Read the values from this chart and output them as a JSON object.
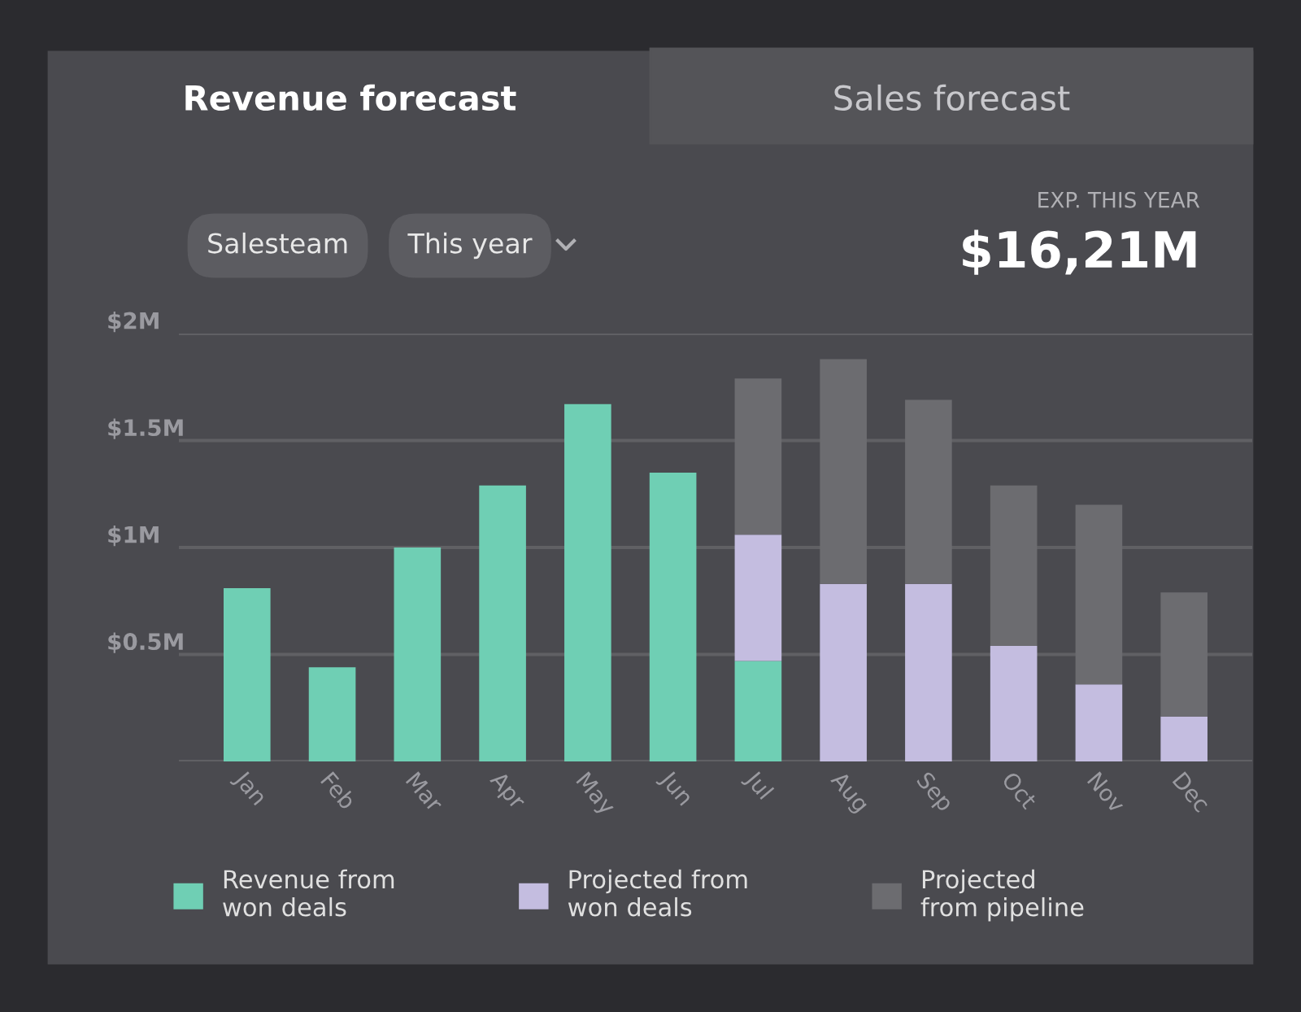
{
  "chart_data": {
    "type": "bar",
    "title": "Revenue forecast",
    "stacked": true,
    "categories": [
      "Jan",
      "Feb",
      "Mar",
      "Apr",
      "May",
      "Jun",
      "Jul",
      "Aug",
      "Sep",
      "Oct",
      "Nov",
      "Dec"
    ],
    "series": [
      {
        "name": "Revenue from\nwon deals",
        "color": "#6fcfb4",
        "values": [
          0.81,
          0.44,
          1.0,
          1.29,
          1.67,
          1.35,
          0.47,
          null,
          null,
          null,
          null,
          null
        ]
      },
      {
        "name": "Projected from\nwon deals",
        "color": "#c4bde0",
        "values": [
          null,
          null,
          null,
          null,
          null,
          null,
          0.59,
          0.83,
          0.83,
          0.54,
          0.36,
          0.21
        ]
      },
      {
        "name": "Projected\nfrom pipeline",
        "color": "#6c6c70",
        "values": [
          null,
          null,
          null,
          null,
          null,
          null,
          0.73,
          1.05,
          0.86,
          0.75,
          0.84,
          0.58
        ]
      }
    ],
    "ylim": [
      0,
      2
    ],
    "yticks": [
      {
        "value": 0,
        "label": null
      },
      {
        "value": 0.5,
        "label": "$0.5M"
      },
      {
        "value": 1,
        "label": "$1M"
      },
      {
        "value": 1.5,
        "label": "$1.5M"
      },
      {
        "value": 2,
        "label": "$2M"
      }
    ],
    "grid": "y",
    "legend": "bottom",
    "annotations": [
      "Sales forecast",
      "Salesteam",
      "This year",
      "EXP. THIS YEAR",
      "$16,21M"
    ]
  }
}
